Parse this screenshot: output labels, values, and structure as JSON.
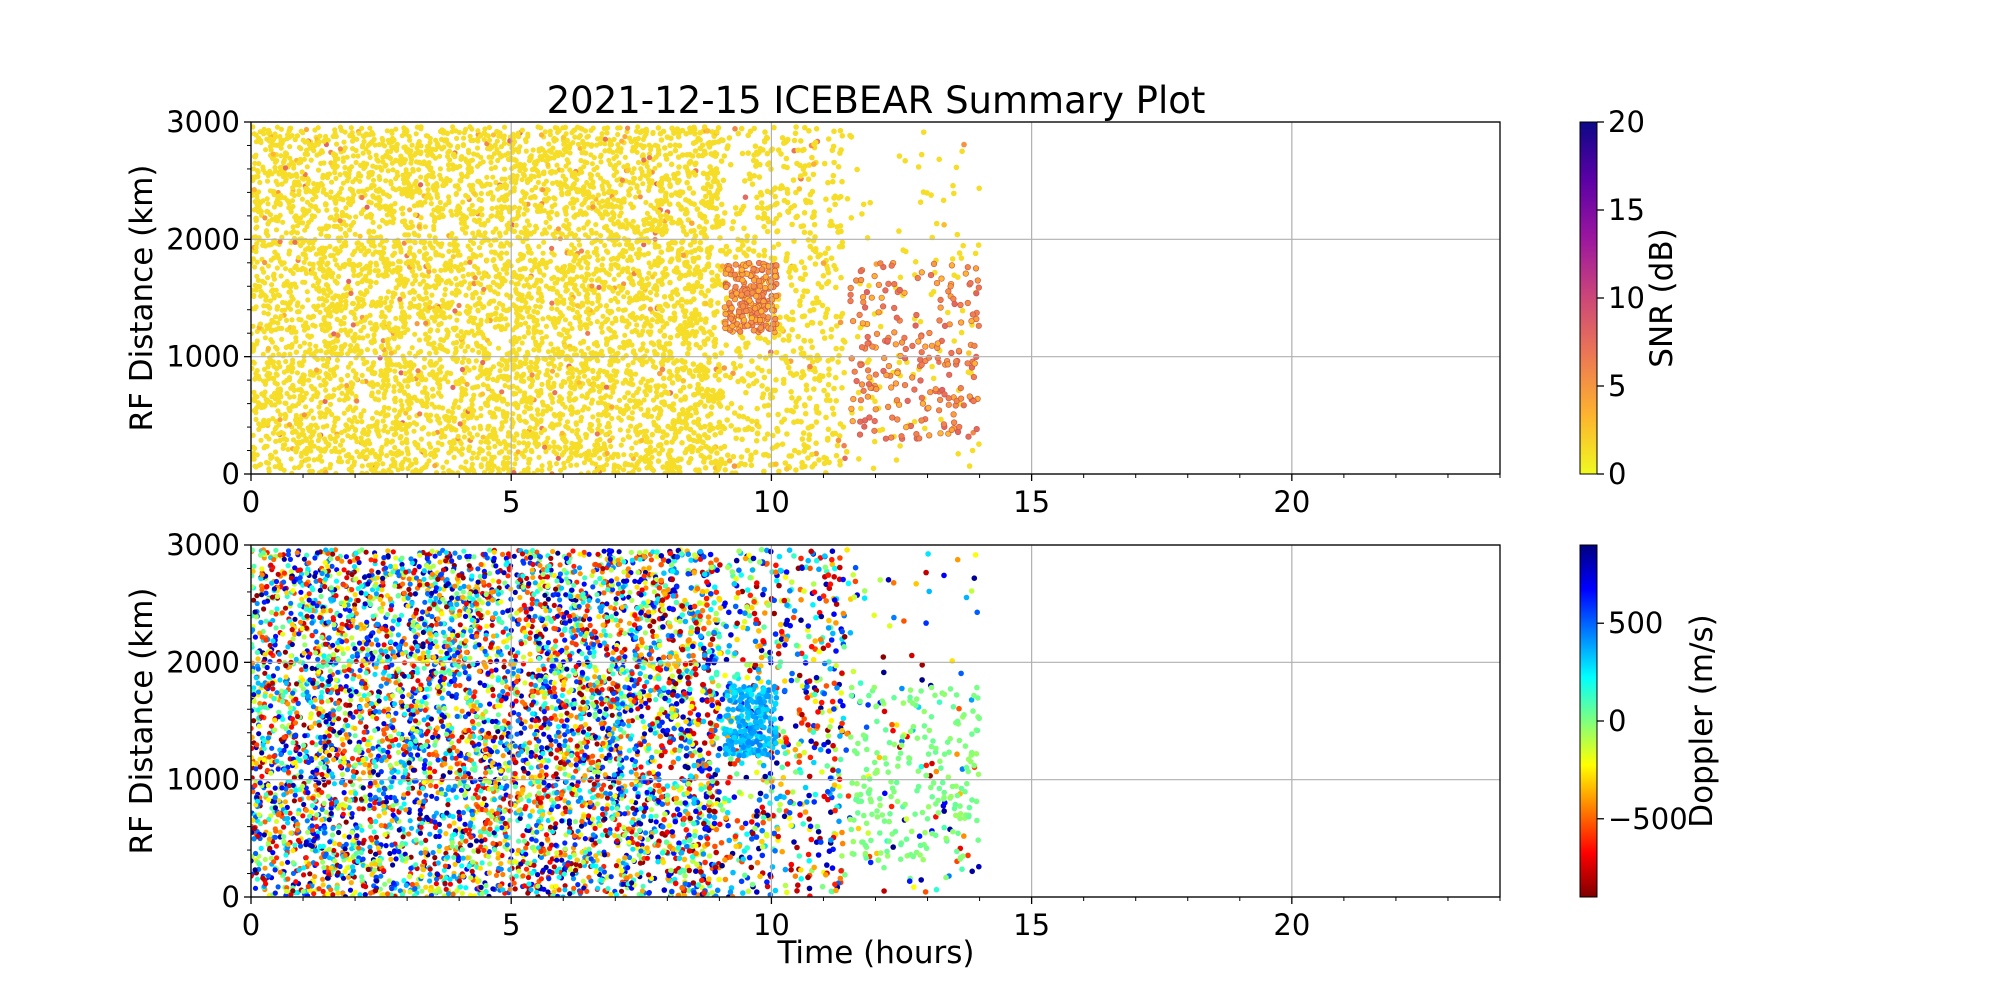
{
  "figure": {
    "title": "2021-12-15 ICEBEAR Summary Plot"
  },
  "chart_data": [
    {
      "type": "scatter",
      "panel": "top",
      "xlabel": "",
      "ylabel": "RF Distance (km)",
      "xlim": [
        0,
        24
      ],
      "ylim": [
        0,
        3000
      ],
      "xticks": [
        0,
        5,
        10,
        15,
        20
      ],
      "yticks": [
        0,
        1000,
        2000,
        3000
      ],
      "grid": true,
      "colorbar": {
        "label": "SNR (dB)",
        "colormap": "plasma_r",
        "range": [
          0,
          20
        ],
        "ticks": [
          0,
          5,
          10,
          15,
          20
        ],
        "colors": [
          "#f0f921",
          "#fdb42f",
          "#ed7953",
          "#cc4778",
          "#9c179e",
          "#5c01a6",
          "#0d0887"
        ]
      },
      "point_color": "#f5dd28",
      "density_by_hour": [
        {
          "hours": [
            0,
            7.8
          ],
          "density": "very high"
        },
        {
          "hours": [
            7.8,
            9.0
          ],
          "density": "high"
        },
        {
          "hours": [
            9.0,
            11.4
          ],
          "density": "medium"
        },
        {
          "hours": [
            11.4,
            14.0
          ],
          "density": "low"
        }
      ],
      "features": [
        {
          "name": "snr enhancement patch",
          "x": [
            9.1,
            10.1
          ],
          "y": [
            1200,
            1800
          ],
          "snr_db": [
            3,
            6
          ]
        },
        {
          "name": "elevated snr echoes",
          "x": [
            11.5,
            14.0
          ],
          "y": [
            300,
            1800
          ],
          "snr_db": [
            3,
            8
          ]
        }
      ]
    },
    {
      "type": "scatter",
      "panel": "bottom",
      "xlabel": "Time (hours)",
      "ylabel": "RF Distance (km)",
      "xlim": [
        0,
        24
      ],
      "ylim": [
        0,
        3000
      ],
      "xticks": [
        0,
        5,
        10,
        15,
        20
      ],
      "yticks": [
        0,
        1000,
        2000,
        3000
      ],
      "grid": true,
      "colorbar": {
        "label": "Doppler (m/s)",
        "colormap": "jet_r",
        "range": [
          -900,
          900
        ],
        "ticks": [
          -500,
          0,
          500
        ],
        "tick_labels": [
          "−500",
          "0",
          "500"
        ],
        "colors": [
          "#7f0000",
          "#ff0000",
          "#ff7f00",
          "#ffff00",
          "#7fff7f",
          "#00ffff",
          "#007fff",
          "#0000ff",
          "#00007f"
        ]
      },
      "density_by_hour": [
        {
          "hours": [
            0,
            7.8
          ],
          "density": "very high"
        },
        {
          "hours": [
            7.8,
            9.0
          ],
          "density": "high"
        },
        {
          "hours": [
            9.0,
            11.4
          ],
          "density": "medium"
        },
        {
          "hours": [
            11.4,
            14.0
          ],
          "density": "low"
        }
      ],
      "features": [
        {
          "name": "cyan doppler patch",
          "x": [
            9.1,
            10.1
          ],
          "y": [
            1200,
            1800
          ],
          "doppler_ms": [
            250,
            450
          ]
        },
        {
          "name": "near-zero doppler echoes",
          "x": [
            11.5,
            14.0
          ],
          "y": [
            300,
            1800
          ],
          "doppler_ms": [
            -50,
            50
          ]
        }
      ]
    }
  ]
}
